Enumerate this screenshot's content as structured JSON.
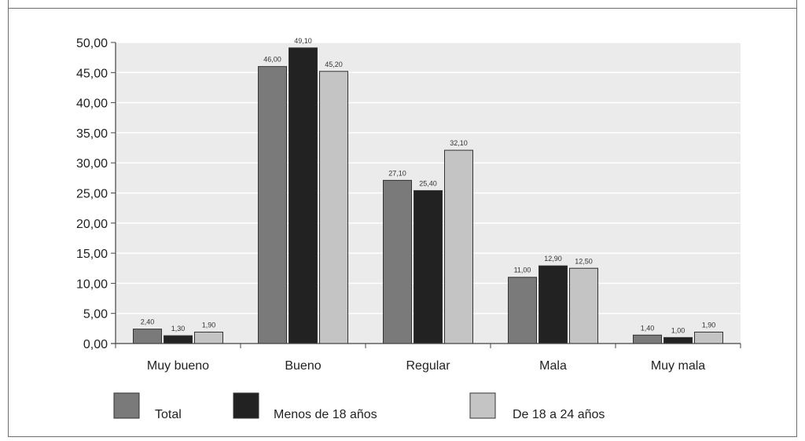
{
  "chart_data": {
    "type": "bar",
    "categories": [
      "Muy bueno",
      "Bueno",
      "Regular",
      "Mala",
      "Muy mala"
    ],
    "series": [
      {
        "name": "Total",
        "color": "#7a7a7a",
        "values": [
          2.4,
          46.0,
          27.1,
          11.0,
          1.4
        ],
        "labels": [
          "2,40",
          "46,00",
          "27,10",
          "11,00",
          "1,40"
        ]
      },
      {
        "name": "Menos de 18 años",
        "color": "#222222",
        "values": [
          1.3,
          49.1,
          25.4,
          12.9,
          1.0
        ],
        "labels": [
          "1,30",
          "49,10",
          "25,40",
          "12,90",
          "1,00"
        ]
      },
      {
        "name": "De 18 a 24 años",
        "color": "#c4c4c4",
        "values": [
          1.9,
          45.2,
          32.1,
          12.5,
          1.9
        ],
        "labels": [
          "1,90",
          "45,20",
          "32,10",
          "12,50",
          "1,90"
        ]
      }
    ],
    "ylim": [
      0,
      50
    ],
    "yticks": [
      "0,00",
      "5,00",
      "10,00",
      "15,00",
      "20,00",
      "25,00",
      "30,00",
      "35,00",
      "40,00",
      "45,00",
      "50,00"
    ],
    "grid": true,
    "legend_position": "bottom",
    "plot_background": "#ebebeb"
  }
}
